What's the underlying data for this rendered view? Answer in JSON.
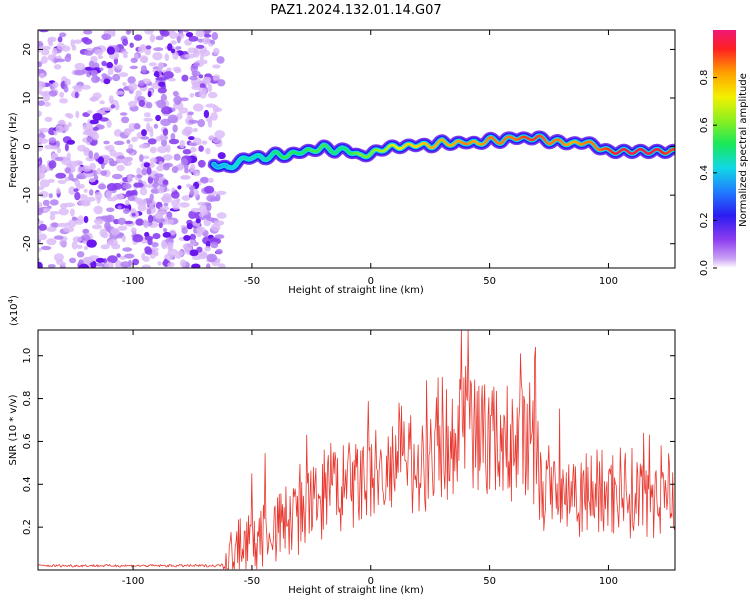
{
  "title": "PAZ1.2024.132.01.14.G07",
  "chart_data": [
    {
      "type": "heatmap",
      "xlabel": "Height of straight line (km)",
      "ylabel": "Frequency (Hz)",
      "xlim": [
        -140,
        128
      ],
      "ylim": [
        -25,
        24
      ],
      "xticks": [
        -100,
        -50,
        0,
        50,
        100
      ],
      "yticks": [
        -20,
        -10,
        0,
        10,
        20
      ],
      "colorbar": {
        "label": "Normalized spectral amplitude",
        "range": [
          0,
          1
        ],
        "ticks": [
          0.0,
          0.2,
          0.4,
          0.6,
          0.8
        ],
        "colors": [
          "#ffffff",
          "#c9a0f5",
          "#8c3cf0",
          "#2b1cf0",
          "#1f7cff",
          "#11d8e6",
          "#18e85a",
          "#8cf020",
          "#f4f000",
          "#ffa000",
          "#ff2020",
          "#f01878"
        ]
      },
      "noise_region_x": [
        -140,
        -66
      ],
      "ridge": {
        "x": [
          -66,
          -60,
          -55,
          -50,
          -45,
          -40,
          -35,
          -30,
          -25,
          -20,
          -15,
          -10,
          -5,
          0,
          5,
          10,
          15,
          20,
          25,
          30,
          35,
          40,
          45,
          50,
          55,
          60,
          65,
          70,
          75,
          80,
          85,
          90,
          95,
          100,
          105,
          110,
          115,
          120,
          125,
          128
        ],
        "y": [
          -3.5,
          -4.5,
          -3.0,
          -2.0,
          -2.5,
          -1.5,
          -2.0,
          -1.0,
          -1.0,
          0.0,
          -1.0,
          -0.5,
          -2.0,
          -1.5,
          -0.5,
          0.0,
          0.0,
          0.5,
          0.0,
          1.0,
          0.5,
          1.0,
          0.5,
          1.5,
          1.0,
          2.0,
          1.5,
          2.0,
          1.0,
          1.0,
          0.5,
          1.0,
          0.0,
          -1.0,
          -1.0,
          -1.0,
          -1.0,
          -1.0,
          -1.0,
          -1.0
        ],
        "amplitude": [
          0.35,
          0.4,
          0.45,
          0.45,
          0.45,
          0.5,
          0.55,
          0.5,
          0.55,
          0.55,
          0.5,
          0.5,
          0.6,
          0.6,
          0.65,
          0.7,
          0.75,
          0.75,
          0.8,
          0.8,
          0.8,
          0.85,
          0.8,
          0.85,
          0.85,
          0.85,
          0.9,
          0.9,
          0.85,
          0.85,
          0.8,
          0.85,
          0.85,
          0.9,
          0.95,
          0.95,
          0.95,
          0.95,
          0.9,
          0.9
        ]
      }
    },
    {
      "type": "line",
      "xlabel": "Height of straight line (km)",
      "ylabel": "SNR (10 * v/v)",
      "y_multiplier": "(x10",
      "y_multiplier_exp": "4",
      "y_multiplier_close": ")",
      "xlim": [
        -140,
        128
      ],
      "ylim": [
        0,
        1.12
      ],
      "xticks": [
        -100,
        -50,
        0,
        50,
        100
      ],
      "yticks": [
        0.2,
        0.4,
        0.6,
        0.8,
        1.0
      ],
      "color": "#e8382f",
      "envelope": {
        "x": [
          -140,
          -100,
          -80,
          -65,
          -58,
          -56,
          -53,
          -50,
          -45,
          -40,
          -30,
          -25,
          -20,
          -10,
          0,
          10,
          20,
          30,
          35,
          40,
          45,
          50,
          55,
          60,
          63,
          65,
          70,
          72,
          80,
          90,
          100,
          110,
          120,
          128
        ],
        "y": [
          0.02,
          0.02,
          0.02,
          0.02,
          0.03,
          0.12,
          0.08,
          0.13,
          0.17,
          0.2,
          0.25,
          0.3,
          0.35,
          0.38,
          0.42,
          0.45,
          0.5,
          0.58,
          0.62,
          0.68,
          0.65,
          0.62,
          0.6,
          0.58,
          0.7,
          0.55,
          0.55,
          0.35,
          0.38,
          0.37,
          0.36,
          0.36,
          0.36,
          0.36
        ]
      },
      "spikes": [
        {
          "x": -55,
          "y": 0.24
        },
        {
          "x": -50,
          "y": 0.45
        },
        {
          "x": -27,
          "y": 0.63
        },
        {
          "x": -15,
          "y": 0.55
        },
        {
          "x": 12,
          "y": 0.78
        },
        {
          "x": 30,
          "y": 0.9
        },
        {
          "x": 40,
          "y": 0.95
        },
        {
          "x": 41,
          "y": 1.12
        },
        {
          "x": 47,
          "y": 0.86
        },
        {
          "x": 63,
          "y": 1.01
        },
        {
          "x": 69,
          "y": 0.99
        },
        {
          "x": 105,
          "y": 0.57
        },
        {
          "x": 122,
          "y": 0.58
        }
      ]
    }
  ]
}
